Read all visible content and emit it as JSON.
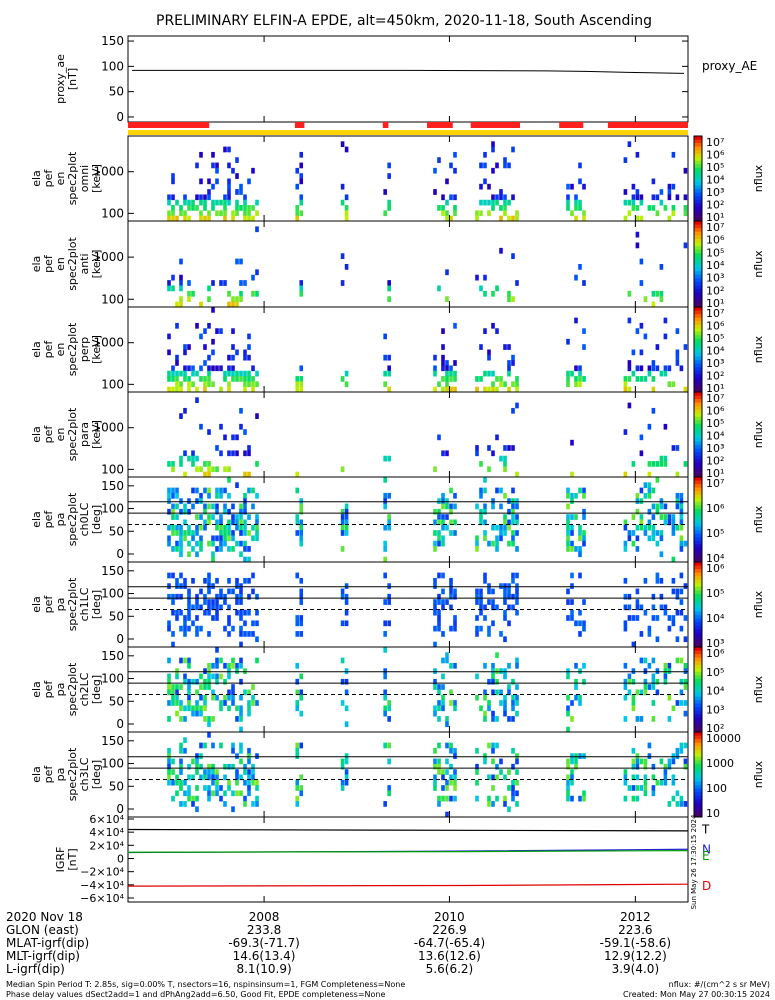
{
  "title": "PRELIMINARY ELFIN-A EPDE, alt=450km, 2020-11-18, South Ascending",
  "proxy_panel": {
    "ylabel": [
      "proxy_ae",
      "[nT]"
    ],
    "yticks": [
      "150",
      "100",
      "50",
      "0"
    ],
    "ylim": [
      -10,
      160
    ],
    "series_name": "proxy_AE",
    "values": [
      [
        0,
        92
      ],
      [
        0.25,
        92
      ],
      [
        0.5,
        92
      ],
      [
        0.75,
        91
      ],
      [
        0.82,
        90
      ],
      [
        0.9,
        88
      ],
      [
        1,
        86
      ]
    ]
  },
  "spectra_panels": [
    {
      "id": "p1",
      "ylabel": [
        "ela",
        "pef",
        "en",
        "spec2plot",
        "omni",
        "[keV]"
      ],
      "yticks": [
        "1000",
        "100"
      ],
      "cbar_ticks": [
        "10⁷",
        "10⁶",
        "10⁵",
        "10⁴",
        "10³",
        "10²",
        "10¹"
      ],
      "cbar_label": "nflux"
    },
    {
      "id": "p2",
      "ylabel": [
        "ela",
        "pef",
        "en",
        "spec2plot",
        "anti",
        "[keV]"
      ],
      "yticks": [
        "1000",
        "100"
      ],
      "cbar_ticks": [
        "10⁷",
        "10⁶",
        "10⁵",
        "10⁴",
        "10³",
        "10²",
        "10¹"
      ],
      "cbar_label": "nflux"
    },
    {
      "id": "p3",
      "ylabel": [
        "ela",
        "pef",
        "en",
        "spec2plot",
        "perp",
        "[keV]"
      ],
      "yticks": [
        "1000",
        "100"
      ],
      "cbar_ticks": [
        "10⁷",
        "10⁶",
        "10⁵",
        "10⁴",
        "10³",
        "10²",
        "10¹"
      ],
      "cbar_label": "nflux"
    },
    {
      "id": "p4",
      "ylabel": [
        "ela",
        "pef",
        "en",
        "spec2plot",
        "para",
        "[keV]"
      ],
      "yticks": [
        "1000",
        "100"
      ],
      "cbar_ticks": [
        "10⁷",
        "10⁶",
        "10⁵",
        "10⁴",
        "10³",
        "10²",
        "10¹"
      ],
      "cbar_label": "nflux"
    },
    {
      "id": "p5",
      "ylabel": [
        "ela",
        "pef",
        "pa",
        "spec2plot",
        "ch0LC",
        "[deg]"
      ],
      "yticks": [
        "150",
        "100",
        "50",
        "0"
      ],
      "cbar_ticks": [
        "10⁷",
        "10⁶",
        "10⁵",
        "10⁴"
      ],
      "cbar_label": "nflux"
    },
    {
      "id": "p6",
      "ylabel": [
        "ela",
        "pef",
        "pa",
        "spec2plot",
        "ch1LC",
        "[deg]"
      ],
      "yticks": [
        "150",
        "100",
        "50",
        "0"
      ],
      "cbar_ticks": [
        "10⁶",
        "10⁵",
        "10⁴",
        "10³"
      ],
      "cbar_label": "nflux"
    },
    {
      "id": "p7",
      "ylabel": [
        "ela",
        "pef",
        "pa",
        "spec2plot",
        "ch2LC",
        "[deg]"
      ],
      "yticks": [
        "150",
        "100",
        "50",
        "0"
      ],
      "cbar_ticks": [
        "10⁶",
        "10⁵",
        "10⁴",
        "10³",
        "10²"
      ],
      "cbar_label": "nflux"
    },
    {
      "id": "p8",
      "ylabel": [
        "ela",
        "pef",
        "pa",
        "spec2plot",
        "ch3LC",
        "[deg]"
      ],
      "yticks": [
        "150",
        "100",
        "50",
        "0"
      ],
      "cbar_ticks": [
        "10000",
        "1000",
        "100",
        "10"
      ],
      "cbar_label": "nflux"
    }
  ],
  "igrf_panel": {
    "ylabel": [
      "IGRF",
      "[nT]"
    ],
    "yticks": [
      "6×10⁴",
      "4×10⁴",
      "2×10⁴",
      "0",
      "−2×10⁴",
      "−4×10⁴",
      "−6×10⁴"
    ],
    "ylim": [
      -60000,
      60000
    ],
    "series": [
      {
        "name": "T",
        "color": "#000000",
        "values": [
          [
            0,
            44000
          ],
          [
            1,
            42000
          ]
        ]
      },
      {
        "name": "N",
        "color": "#2020d0",
        "values": [
          [
            0,
            9000
          ],
          [
            0.55,
            11000
          ],
          [
            1,
            14000
          ]
        ]
      },
      {
        "name": "E",
        "color": "#00a000",
        "values": [
          [
            0,
            9500
          ],
          [
            0.6,
            10500
          ],
          [
            1,
            12000
          ]
        ]
      },
      {
        "name": "D",
        "color": "#e00000",
        "values": [
          [
            0,
            -42000
          ],
          [
            0.6,
            -41000
          ],
          [
            1,
            -39000
          ]
        ]
      }
    ],
    "legend_labels": [
      "T",
      "N",
      "E",
      "D"
    ],
    "side_stamp": "Sun May 26 17:30:15 2024"
  },
  "science_zone_bars": {
    "color_red": "#ff2020",
    "color_yellow": "#ffd400",
    "red_segments": [
      [
        0,
        0.145
      ],
      [
        0.298,
        0.315
      ],
      [
        0.455,
        0.465
      ],
      [
        0.534,
        0.58
      ],
      [
        0.612,
        0.7
      ],
      [
        0.77,
        0.813
      ],
      [
        0.857,
        1.0
      ]
    ]
  },
  "xaxis": {
    "ticks": [
      {
        "label": "2008",
        "frac": 0.243
      },
      {
        "label": "2010",
        "frac": 0.574
      },
      {
        "label": "2012",
        "frac": 0.906
      }
    ]
  },
  "ephemeris": {
    "row_labels": [
      "2020 Nov 18",
      "GLON (east)",
      "MLAT-igrf(dip)",
      "MLT-igrf(dip)",
      "L-igrf(dip)"
    ],
    "columns": [
      {
        "frac": 0.243,
        "values": [
          "2008",
          "233.8",
          "-69.3(-71.7)",
          "14.6(13.4)",
          "8.1(10.9)"
        ]
      },
      {
        "frac": 0.574,
        "values": [
          "2010",
          "226.9",
          "-64.7(-65.4)",
          "13.6(12.6)",
          "5.6(6.2)"
        ]
      },
      {
        "frac": 0.906,
        "values": [
          "2012",
          "223.6",
          "-59.1(-58.6)",
          "12.9(12.2)",
          "3.9(4.0)"
        ]
      }
    ]
  },
  "footer": {
    "line1": "Median Spin Period T: 2.85s, sig=0.00% T, nsectors=16, nspinsinsum=1, FGM Completeness=None",
    "line2": "Phase delay values dSect2add=1 and dPhAng2add=6.50, Good Fit, EPDE completeness=None",
    "units": "nflux: #/(cm^2 s sr MeV)",
    "created": "Created: Mon May 27 00:30:15 2024"
  }
}
